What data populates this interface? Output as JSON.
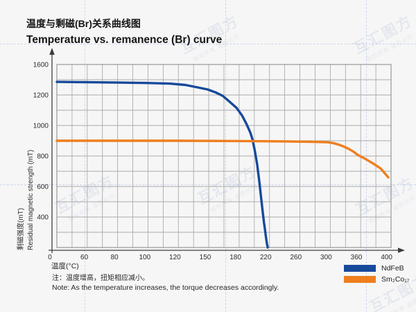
{
  "title": {
    "zh": "温度与剩磁(Br)关系曲线图",
    "en": "Temperature vs. remanence (Br) curve"
  },
  "watermark": {
    "brand": "互汇图方",
    "slogan": "版权所有 盗图必究"
  },
  "note": {
    "zh": "注：温度增高，扭矩相应减小。",
    "en": "Note: As the temperature increases, the torque decreases accordingly."
  },
  "legend": {
    "items": [
      {
        "label": "NdFeB",
        "color": "#17499b"
      },
      {
        "label": "Sm₂Co₁₇",
        "color": "#ee7e1e"
      }
    ]
  },
  "chart_data": {
    "type": "line",
    "title_zh": "温度与剩磁(Br)关系曲线图",
    "title_en": "Temperature vs. remanence (Br) curve",
    "xlabel": "温度(°C)",
    "ylabel_zh": "剩磁强度(mT)",
    "ylabel_en": "Residual magnetic strength (mT)",
    "x_tick_labels": [
      0,
      60,
      80,
      100,
      120,
      150,
      180,
      220,
      260,
      300,
      360,
      400
    ],
    "y_tick_labels": [
      1600,
      1200,
      1000,
      800,
      600,
      400,
      0
    ],
    "x_range": [
      0,
      400
    ],
    "y_range": [
      0,
      1600
    ],
    "grid": true,
    "legend_position": "bottom-right",
    "axis_note": "tick labels are evenly spaced (non-linear value scale as drawn)",
    "series": [
      {
        "name": "NdFeB",
        "color": "#17499b",
        "points": [
          [
            0,
            1372
          ],
          [
            40,
            1369
          ],
          [
            80,
            1363
          ],
          [
            100,
            1357
          ],
          [
            115,
            1349
          ],
          [
            128,
            1332
          ],
          [
            140,
            1300
          ],
          [
            150,
            1273
          ],
          [
            158,
            1235
          ],
          [
            165,
            1195
          ],
          [
            172,
            1156
          ],
          [
            179,
            1115
          ],
          [
            186,
            1065
          ],
          [
            192,
            1008
          ],
          [
            197,
            952
          ],
          [
            200,
            905
          ],
          [
            203,
            830
          ],
          [
            206,
            745
          ],
          [
            209,
            625
          ],
          [
            211,
            535
          ],
          [
            213,
            450
          ],
          [
            215,
            330
          ],
          [
            216,
            260
          ],
          [
            217,
            185
          ],
          [
            218,
            110
          ],
          [
            219,
            45
          ],
          [
            220,
            0
          ]
        ]
      },
      {
        "name": "Sm₂Co₁₇",
        "color": "#ee7e1e",
        "points": [
          [
            0,
            900
          ],
          [
            60,
            900
          ],
          [
            120,
            900
          ],
          [
            180,
            898
          ],
          [
            240,
            896
          ],
          [
            280,
            893
          ],
          [
            300,
            890
          ],
          [
            310,
            885
          ],
          [
            320,
            876
          ],
          [
            330,
            864
          ],
          [
            340,
            849
          ],
          [
            350,
            830
          ],
          [
            360,
            806
          ],
          [
            370,
            780
          ],
          [
            380,
            751
          ],
          [
            390,
            718
          ],
          [
            400,
            660
          ]
        ]
      }
    ]
  }
}
